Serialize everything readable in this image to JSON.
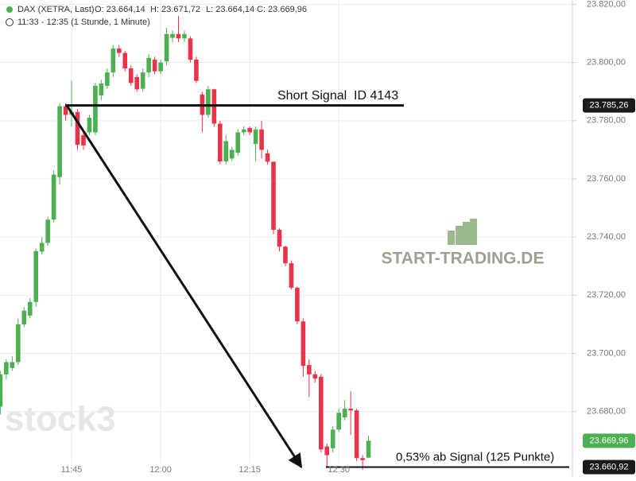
{
  "chart_data": {
    "type": "candlestick",
    "legend_text": [
      "DAX (XETRA, Last)",
      "O: 23.664,14",
      "H: 23.671,72",
      "L: 23.664,14",
      "C: 23.669,96"
    ],
    "range_text": "11:33 - 12:35 (1 Stunde, 1 Minute)",
    "x": [
      "11:33",
      "11:34",
      "11:35",
      "11:36",
      "11:37",
      "11:38",
      "11:39",
      "11:40",
      "11:41",
      "11:42",
      "11:43",
      "11:44",
      "11:45",
      "11:46",
      "11:47",
      "11:48",
      "11:49",
      "11:50",
      "11:51",
      "11:52",
      "11:53",
      "11:54",
      "11:55",
      "11:56",
      "11:57",
      "11:58",
      "11:59",
      "12:00",
      "12:01",
      "12:02",
      "12:03",
      "12:04",
      "12:05",
      "12:06",
      "12:07",
      "12:08",
      "12:09",
      "12:10",
      "12:11",
      "12:12",
      "12:13",
      "12:14",
      "12:15",
      "12:16",
      "12:17",
      "12:18",
      "12:19",
      "12:20",
      "12:21",
      "12:22",
      "12:23",
      "12:24",
      "12:25",
      "12:26",
      "12:27",
      "12:28",
      "12:29",
      "12:30",
      "12:31",
      "12:32",
      "12:33",
      "12:34",
      "12:35"
    ],
    "open": [
      23681.7,
      23692.8,
      23695,
      23697,
      23710,
      23713,
      23717.7,
      23735,
      23738,
      23746,
      23760.6,
      23785,
      23782,
      23783,
      23775,
      23776,
      23776,
      23788.7,
      23792,
      23796.6,
      23804.8,
      23803.3,
      23798,
      23795,
      23791,
      23796.6,
      23801,
      23797,
      23800.4,
      23808.5,
      23809.8,
      23808.3,
      23808.3,
      23801,
      23789,
      23782,
      23790.8,
      23779,
      23766,
      23767,
      23769,
      23776,
      23777.5,
      23772,
      23777,
      23768.8,
      23765.9,
      23742.5,
      23736.7,
      23731,
      23722.6,
      23711,
      23696,
      23692.8,
      23692,
      23668,
      23667.4,
      23673.8,
      23678,
      23681,
      23680.4,
      23664,
      23664.14
    ],
    "high": [
      23694,
      23698,
      23699,
      23712,
      23716,
      23719,
      23736,
      23740,
      23747,
      23763,
      23786,
      23786,
      23793.7,
      23784,
      23777,
      23782,
      23793,
      23794,
      23798,
      23806,
      23806,
      23804,
      23799,
      23796,
      23798,
      23803,
      23802,
      23801,
      23812,
      23811,
      23816,
      23811,
      23809,
      23802,
      23790,
      23792,
      23791,
      23780,
      23775,
      23771,
      23777,
      23778,
      23778,
      23778,
      23780,
      23770,
      23766,
      23743,
      23737,
      23732,
      23723,
      23712,
      23698,
      23694,
      23693,
      23669,
      23675,
      23681,
      23684,
      23687,
      23681,
      23665,
      23671.72
    ],
    "low": [
      23679,
      23691,
      23694,
      23696,
      23709,
      23712,
      23716,
      23734,
      23737,
      23745,
      23758,
      23780,
      23778,
      23770,
      23770,
      23775,
      23775,
      23787,
      23791,
      23795,
      23802,
      23797,
      23792,
      23790,
      23790,
      23795,
      23796,
      23796,
      23799,
      23807,
      23807,
      23807,
      23800,
      23793,
      23776,
      23781,
      23778,
      23765,
      23765,
      23766,
      23768,
      23775,
      23775,
      23766,
      23767,
      23765,
      23741,
      23735,
      23730,
      23722,
      23710,
      23692,
      23685,
      23690,
      23666,
      23660.9,
      23666,
      23673,
      23677,
      23672,
      23663,
      23660,
      23664.14
    ],
    "close": [
      23692.8,
      23697,
      23697,
      23710,
      23714.7,
      23717.7,
      23735.2,
      23738,
      23746,
      23761.5,
      23785,
      23782,
      23783,
      23771.7,
      23771.5,
      23781,
      23792,
      23792.8,
      23796.6,
      23804.8,
      23803.3,
      23798,
      23793,
      23790.8,
      23796.6,
      23801.6,
      23797,
      23800,
      23809.8,
      23809.8,
      23808.3,
      23809.8,
      23801,
      23793.7,
      23782,
      23790.8,
      23779,
      23766,
      23773,
      23770,
      23776,
      23777,
      23776,
      23777,
      23770,
      23765.9,
      23742.5,
      23736.7,
      23731,
      23722.6,
      23711,
      23695.7,
      23692.8,
      23691.3,
      23667,
      23665,
      23673.8,
      23679.6,
      23681,
      23680.4,
      23664,
      23663.3,
      23669.96
    ],
    "up_color": "#4caf50",
    "down_color": "#e8334a",
    "ylim": [
      23657.5,
      23821.5
    ],
    "yticks": [
      {
        "value": 23680,
        "label": "23.680,00"
      },
      {
        "value": 23700,
        "label": "23.700,00"
      },
      {
        "value": 23720,
        "label": "23.720,00"
      },
      {
        "value": 23740,
        "label": "23.740,00"
      },
      {
        "value": 23760,
        "label": "23.760,00"
      },
      {
        "value": 23780,
        "label": "23.780,00"
      },
      {
        "value": 23800,
        "label": "23.800,00"
      },
      {
        "value": 23820,
        "label": "23.820,00"
      }
    ],
    "xticks": [
      "11:45",
      "12:00",
      "12:15",
      "12:30"
    ],
    "grid": true,
    "price_markers": [
      {
        "value": 23785.26,
        "label": "23.785,26",
        "color": "#1a1a1a"
      },
      {
        "value": 23669.96,
        "label": "23.669,96",
        "color": "#4caf50"
      },
      {
        "value": 23660.92,
        "label": "23.660,92",
        "color": "#1a1a1a"
      }
    ],
    "annotations": [
      "Short Signal  ID 4143",
      "0,53% ab Signal (125 Punkte)"
    ],
    "watermarks": [
      "START-TRADING.DE",
      "stock3"
    ]
  }
}
